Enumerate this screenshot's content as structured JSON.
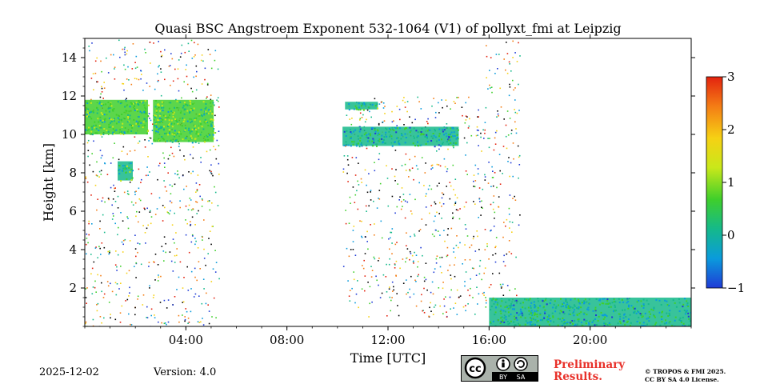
{
  "chart_data": {
    "type": "heatmap",
    "title": "Quasi BSC Angstroem Exponent 532-1064 (V1) of pollyxt_fmi at Leipzig",
    "xlabel": "Time [UTC]",
    "ylabel": "Height [km]",
    "xlim": [
      0,
      24
    ],
    "ylim": [
      0,
      15
    ],
    "x_ticks": [
      {
        "value": 4,
        "label": "04:00"
      },
      {
        "value": 8,
        "label": "08:00"
      },
      {
        "value": 12,
        "label": "12:00"
      },
      {
        "value": 16,
        "label": "16:00"
      },
      {
        "value": 20,
        "label": "20:00"
      }
    ],
    "y_ticks": [
      {
        "value": 2,
        "label": "2"
      },
      {
        "value": 4,
        "label": "4"
      },
      {
        "value": 6,
        "label": "6"
      },
      {
        "value": 8,
        "label": "8"
      },
      {
        "value": 10,
        "label": "10"
      },
      {
        "value": 12,
        "label": "12"
      },
      {
        "value": 14,
        "label": "14"
      }
    ],
    "colorbar": {
      "range": [
        -1,
        3
      ],
      "ticks": [
        {
          "value": -1,
          "label": "−1"
        },
        {
          "value": 0,
          "label": "0"
        },
        {
          "value": 1,
          "label": "1"
        },
        {
          "value": 2,
          "label": "2"
        },
        {
          "value": 3,
          "label": "3"
        }
      ],
      "colormap": [
        "#1f3bd6",
        "#0a9bdc",
        "#15b98a",
        "#3fcf2b",
        "#c9e81a",
        "#f6d114",
        "#f47d15",
        "#e3230f"
      ]
    },
    "features": [
      {
        "name": "cirrus-layer-early",
        "t_start": 0.0,
        "t_end": 2.5,
        "h_bottom": 10.0,
        "h_top": 11.8,
        "value": 0.5
      },
      {
        "name": "cirrus-layer-morning",
        "t_start": 2.7,
        "t_end": 5.1,
        "h_bottom": 9.6,
        "h_top": 11.8,
        "value": 0.7
      },
      {
        "name": "small-layer-8km",
        "t_start": 1.3,
        "t_end": 1.9,
        "h_bottom": 7.6,
        "h_top": 8.6,
        "value": 0.4
      },
      {
        "name": "cirrus-midday-upper",
        "t_start": 10.3,
        "t_end": 11.6,
        "h_bottom": 11.3,
        "h_top": 11.7,
        "value": 0.3
      },
      {
        "name": "cirrus-midday",
        "t_start": 10.2,
        "t_end": 14.8,
        "h_bottom": 9.4,
        "h_top": 10.4,
        "value": 0.1
      },
      {
        "name": "boundary-layer-evening",
        "t_start": 16.0,
        "t_end": 24.0,
        "h_bottom": 0.0,
        "h_top": 1.5,
        "value": 0.2
      }
    ]
  },
  "footer": {
    "date": "2025-12-02",
    "version": "Version: 4.0",
    "preliminary_line1": "Preliminary",
    "preliminary_line2": "Results.",
    "copyright_line1": "© TROPOS & FMI 2025.",
    "copyright_line2": "CC BY SA 4.0 License.",
    "license_badge": {
      "by_label": "BY",
      "sa_label": "SA",
      "cc_label": "cc"
    }
  }
}
